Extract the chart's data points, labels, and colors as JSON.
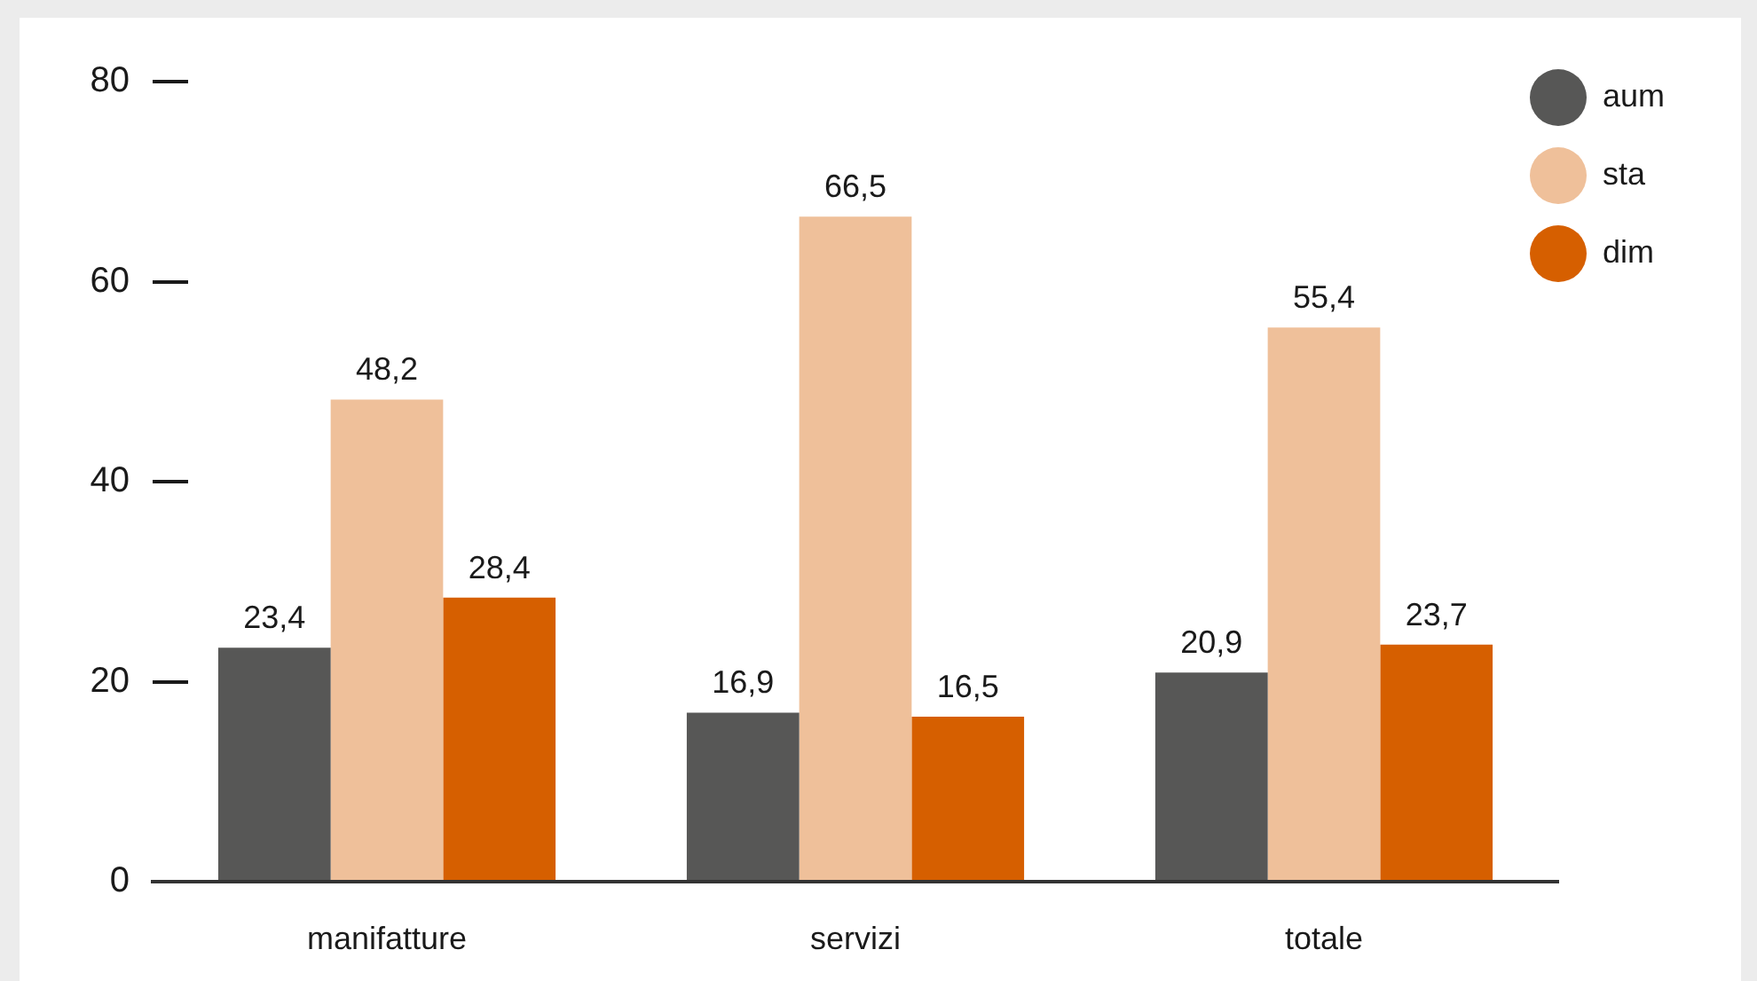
{
  "chart_data": {
    "type": "bar",
    "categories": [
      "manifatture",
      "servizi",
      "totale"
    ],
    "series": [
      {
        "name": "aum",
        "color": "#575756",
        "values": [
          23.4,
          16.9,
          20.9
        ],
        "value_labels": [
          "23,4",
          "16,9",
          "20,9"
        ]
      },
      {
        "name": "sta",
        "color": "#efc09a",
        "values": [
          48.2,
          66.5,
          55.4
        ],
        "value_labels": [
          "48,2",
          "66,5",
          "55,4"
        ]
      },
      {
        "name": "dim",
        "color": "#d65f00",
        "values": [
          28.4,
          16.5,
          23.7
        ],
        "value_labels": [
          "28,4",
          "16,5",
          "23,7"
        ]
      }
    ],
    "ylim": [
      0,
      80
    ],
    "yticks": [
      0,
      20,
      40,
      60,
      80
    ],
    "grid": false,
    "legend": "top right"
  }
}
